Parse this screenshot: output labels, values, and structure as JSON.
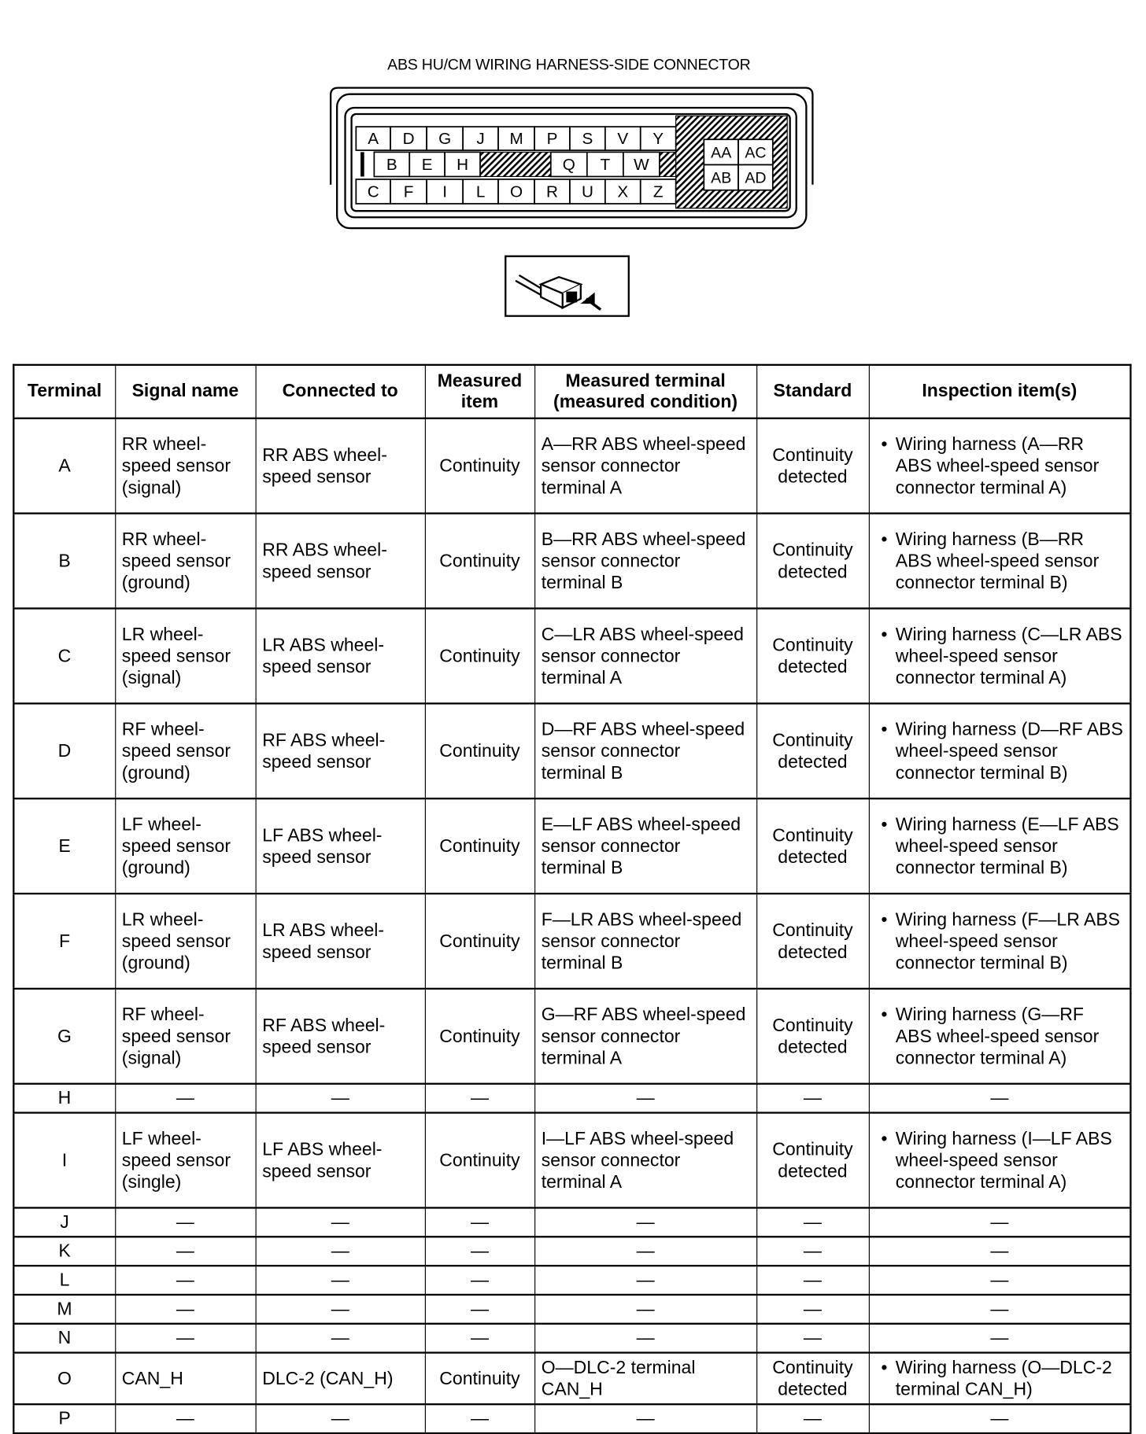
{
  "title": "ABS HU/CM WIRING HARNESS-SIDE CONNECTOR",
  "connector": {
    "row1": [
      "A",
      "D",
      "G",
      "J",
      "M",
      "P",
      "S",
      "V",
      "Y"
    ],
    "row2_left": [
      "B",
      "E",
      "H"
    ],
    "row2_right": [
      "Q",
      "T",
      "W"
    ],
    "row3": [
      "C",
      "F",
      "I",
      "L",
      "O",
      "R",
      "U",
      "X",
      "Z"
    ],
    "block": [
      "AA",
      "AC",
      "AB",
      "AD"
    ]
  },
  "view_icon": "harness-side-view-icon",
  "table": {
    "headers": [
      "Terminal",
      "Signal name",
      "Connected to",
      "Measured item",
      "Measured terminal (measured condition)",
      "Standard",
      "Inspection item(s)"
    ],
    "rows": [
      {
        "terminal": "A",
        "signal": "RR wheel-speed sensor (signal)",
        "connected": "RR ABS wheel-speed sensor",
        "item": "Continuity",
        "measured": "A—RR ABS wheel-speed sensor connector terminal A",
        "standard": "Continuity detected",
        "inspection": "Wiring harness (A—RR ABS wheel-speed sensor connector terminal A)"
      },
      {
        "terminal": "B",
        "signal": "RR wheel-speed sensor (ground)",
        "connected": "RR ABS wheel-speed sensor",
        "item": "Continuity",
        "measured": "B—RR ABS wheel-speed sensor connector terminal B",
        "standard": "Continuity detected",
        "inspection": "Wiring harness (B—RR ABS wheel-speed sensor connector terminal B)"
      },
      {
        "terminal": "C",
        "signal": "LR wheel-speed sensor (signal)",
        "connected": "LR ABS wheel-speed sensor",
        "item": "Continuity",
        "measured": "C—LR ABS wheel-speed sensor connector terminal A",
        "standard": "Continuity detected",
        "inspection": "Wiring harness (C—LR ABS wheel-speed sensor connector terminal A)"
      },
      {
        "terminal": "D",
        "signal": "RF wheel-speed sensor (ground)",
        "connected": "RF ABS wheel-speed sensor",
        "item": "Continuity",
        "measured": "D—RF ABS wheel-speed sensor connector terminal B",
        "standard": "Continuity detected",
        "inspection": "Wiring harness (D—RF ABS wheel-speed sensor connector terminal B)"
      },
      {
        "terminal": "E",
        "signal": "LF wheel-speed sensor (ground)",
        "connected": "LF ABS wheel-speed sensor",
        "item": "Continuity",
        "measured": "E—LF ABS wheel-speed sensor connector terminal B",
        "standard": "Continuity detected",
        "inspection": "Wiring harness (E—LF ABS wheel-speed sensor connector terminal B)"
      },
      {
        "terminal": "F",
        "signal": "LR wheel-speed sensor (ground)",
        "connected": "LR ABS wheel-speed sensor",
        "item": "Continuity",
        "measured": "F—LR ABS wheel-speed sensor connector terminal B",
        "standard": "Continuity detected",
        "inspection": "Wiring harness (F—LR ABS wheel-speed sensor connector terminal B)"
      },
      {
        "terminal": "G",
        "signal": "RF wheel-speed sensor (signal)",
        "connected": "RF ABS wheel-speed sensor",
        "item": "Continuity",
        "measured": "G—RF ABS wheel-speed sensor connector terminal A",
        "standard": "Continuity detected",
        "inspection": "Wiring harness (G—RF ABS wheel-speed sensor connector terminal A)"
      },
      {
        "terminal": "H",
        "signal": "—",
        "connected": "—",
        "item": "—",
        "measured": "—",
        "standard": "—",
        "inspection": "—"
      },
      {
        "terminal": "I",
        "signal": "LF wheel-speed sensor (single)",
        "connected": "LF ABS wheel-speed sensor",
        "item": "Continuity",
        "measured": "I—LF ABS wheel-speed sensor connector terminal A",
        "standard": "Continuity detected",
        "inspection": "Wiring harness (I—LF ABS wheel-speed sensor connector terminal A)"
      },
      {
        "terminal": "J",
        "signal": "—",
        "connected": "—",
        "item": "—",
        "measured": "—",
        "standard": "—",
        "inspection": "—"
      },
      {
        "terminal": "K",
        "signal": "—",
        "connected": "—",
        "item": "—",
        "measured": "—",
        "standard": "—",
        "inspection": "—"
      },
      {
        "terminal": "L",
        "signal": "—",
        "connected": "—",
        "item": "—",
        "measured": "—",
        "standard": "—",
        "inspection": "—"
      },
      {
        "terminal": "M",
        "signal": "—",
        "connected": "—",
        "item": "—",
        "measured": "—",
        "standard": "—",
        "inspection": "—"
      },
      {
        "terminal": "N",
        "signal": "—",
        "connected": "—",
        "item": "—",
        "measured": "—",
        "standard": "—",
        "inspection": "—"
      },
      {
        "terminal": "O",
        "signal": "CAN_H",
        "connected": "DLC-2 (CAN_H)",
        "item": "Continuity",
        "measured": "O—DLC-2 terminal CAN_H",
        "standard": "Continuity detected",
        "inspection": "Wiring harness (O—DLC-2 terminal CAN_H)"
      },
      {
        "terminal": "P",
        "signal": "—",
        "connected": "—",
        "item": "—",
        "measured": "—",
        "standard": "—",
        "inspection": "—"
      }
    ]
  }
}
